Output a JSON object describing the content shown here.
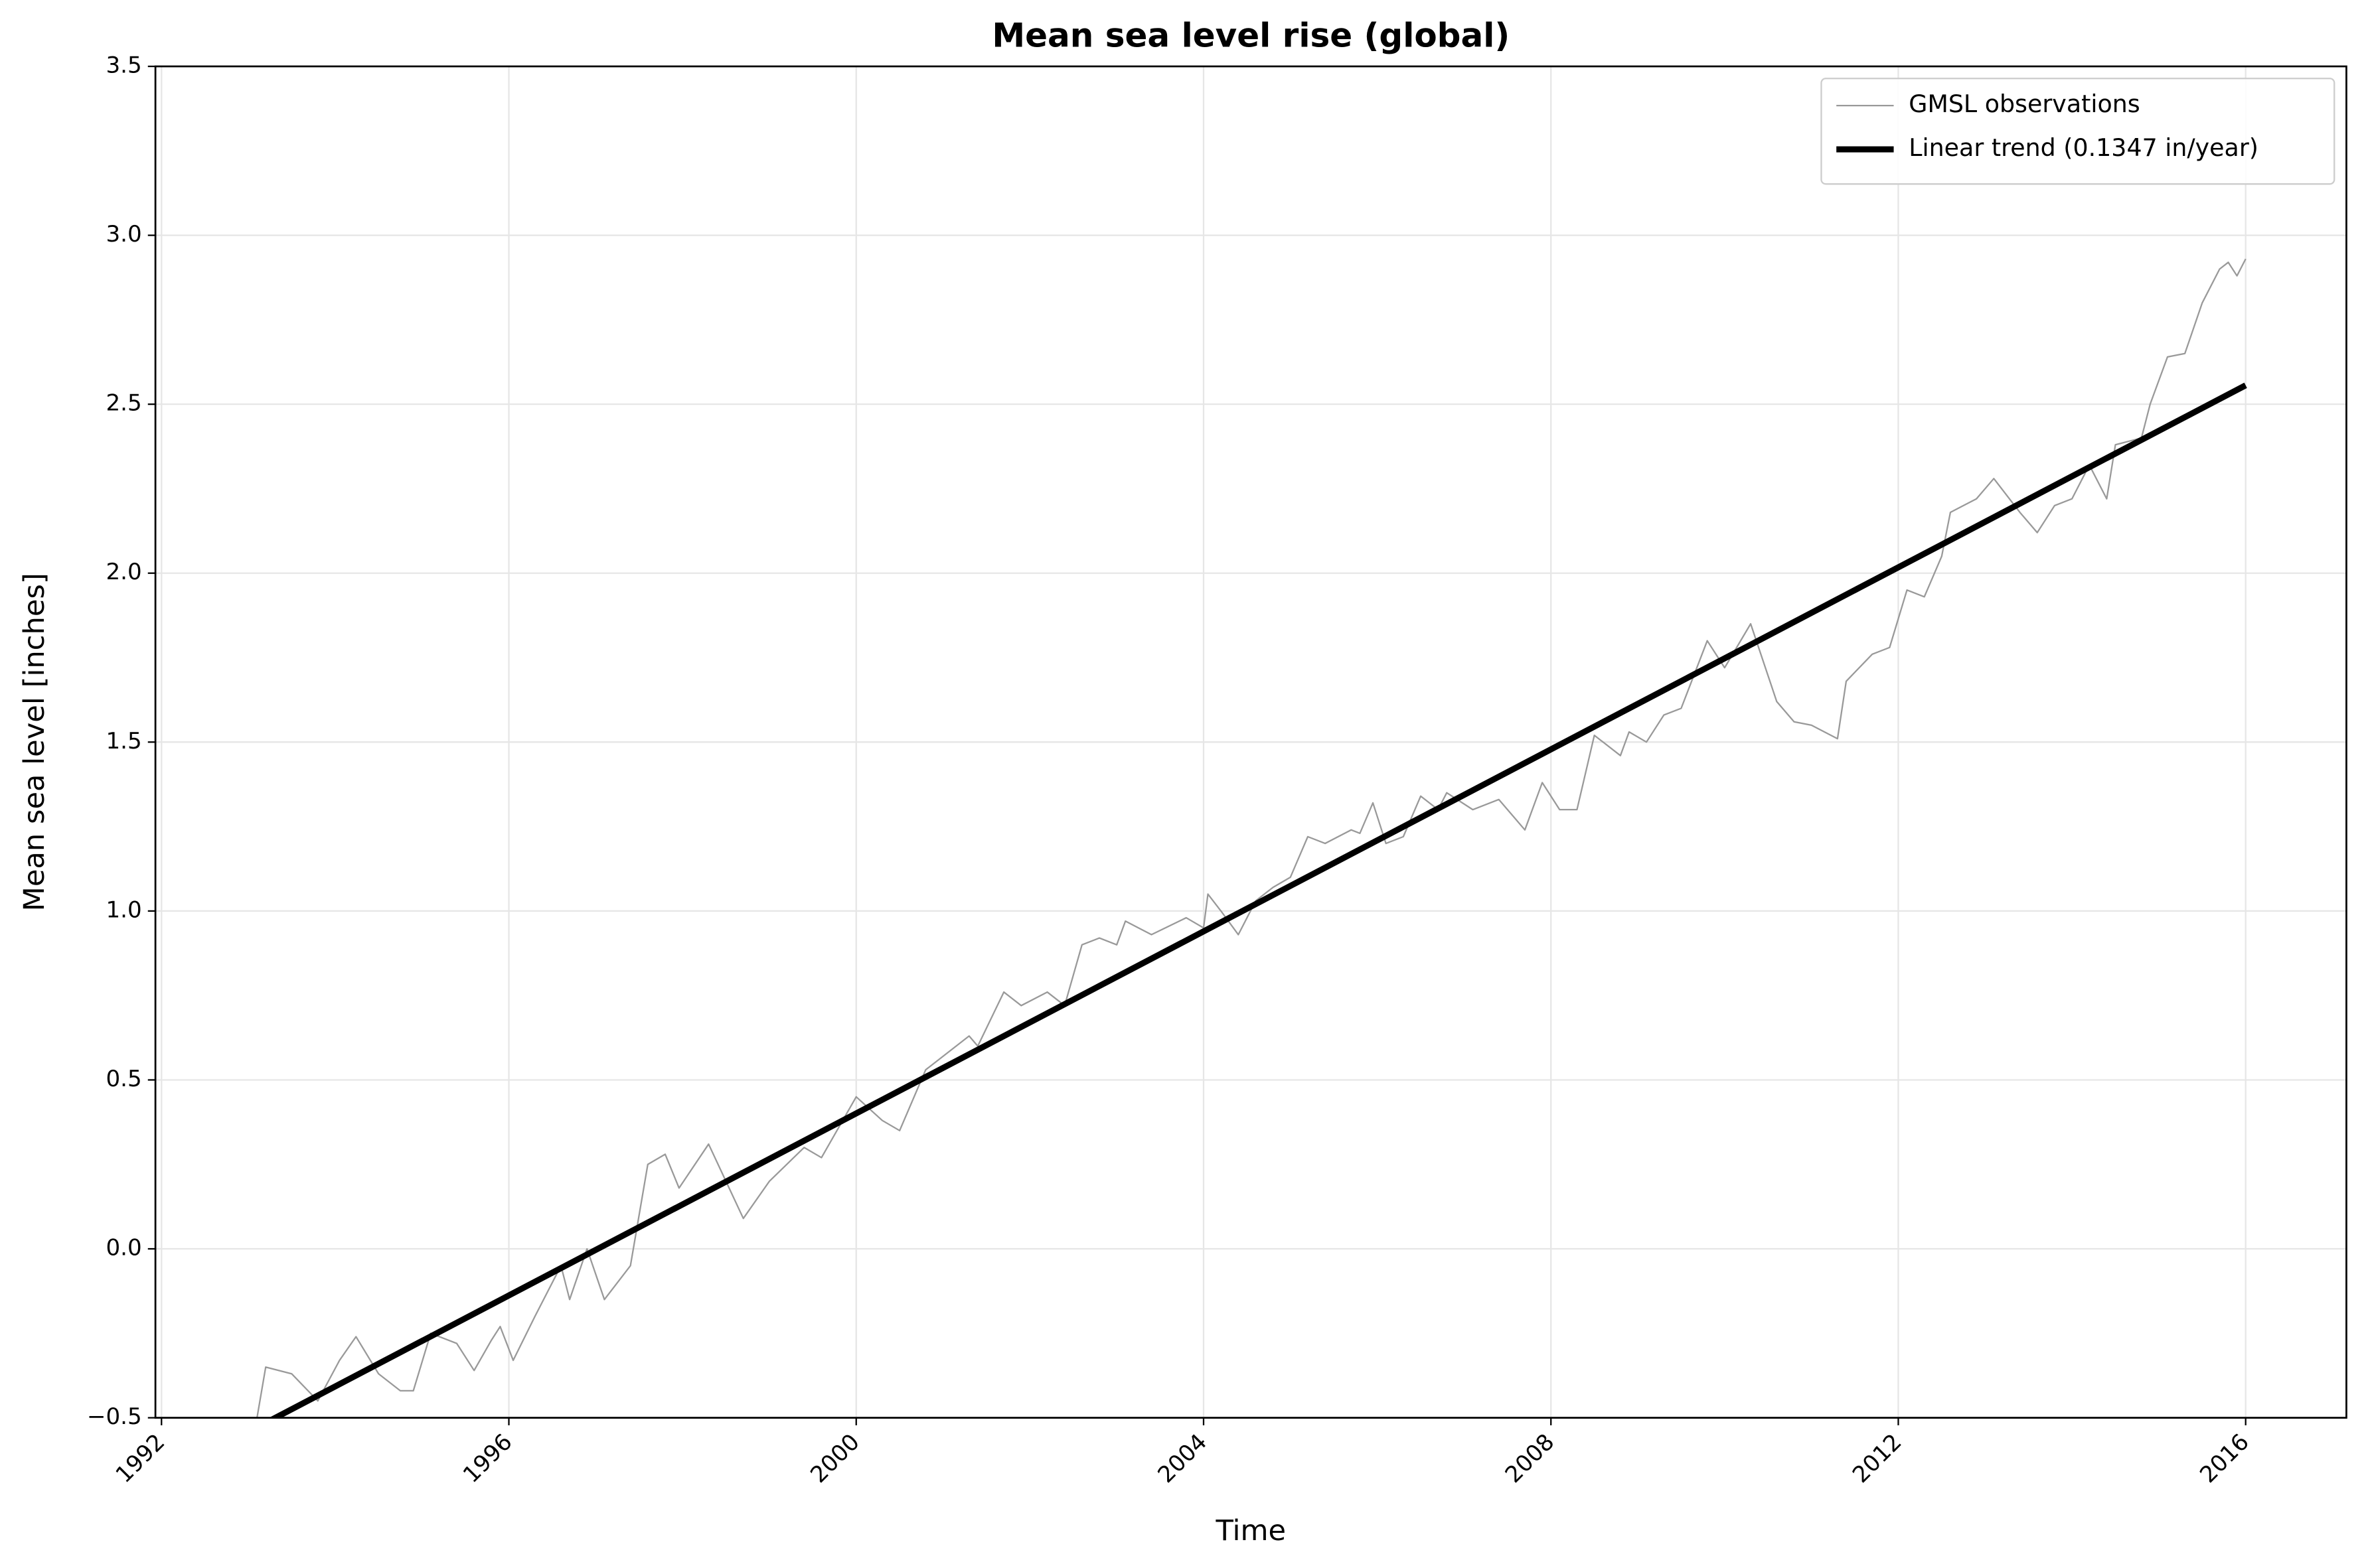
{
  "chart_data": {
    "type": "line",
    "title": "Mean sea level rise (global)",
    "x_label": "Time",
    "y_label": "Mean sea level [inches]",
    "xlim": [
      1991.93,
      2017.16
    ],
    "ylim": [
      -0.5,
      3.5
    ],
    "xticks": [
      1992,
      1996,
      2000,
      2004,
      2008,
      2012,
      2016
    ],
    "yticks": [
      {
        "value": -0.5,
        "label": "−0.5"
      },
      {
        "value": 0,
        "label": "0.0"
      },
      0.5,
      {
        "value": 1,
        "label": "1.0"
      },
      1.5,
      {
        "value": 2,
        "label": "2.0"
      },
      2.5,
      {
        "value": 3,
        "label": "3.0"
      },
      3.5
    ],
    "grid": true,
    "legend": "upper right",
    "series": [
      {
        "name": "GMSL observations",
        "color": "#999999",
        "width": 1,
        "x": [
          1993.0,
          1993.1,
          1993.2,
          1993.5,
          1993.8,
          1994.05,
          1994.24,
          1994.5,
          1994.75,
          1994.9,
          1995.1,
          1995.4,
          1995.6,
          1995.8,
          1995.9,
          1996.05,
          1996.3,
          1996.6,
          1996.7,
          1996.9,
          1997.1,
          1997.4,
          1997.6,
          1997.8,
          1997.96,
          1998.3,
          1998.7,
          1999.0,
          1999.4,
          1999.6,
          2000.0,
          2000.3,
          2000.5,
          2000.8,
          2001.3,
          2001.4,
          2001.7,
          2001.9,
          2002.2,
          2002.4,
          2002.6,
          2002.8,
          2003.0,
          2003.1,
          2003.4,
          2003.8,
          2004.0,
          2004.05,
          2004.2,
          2004.4,
          2004.6,
          2004.8,
          2005.0,
          2005.2,
          2005.4,
          2005.7,
          2005.8,
          2005.95,
          2006.1,
          2006.3,
          2006.5,
          2006.7,
          2006.8,
          2007.1,
          2007.4,
          2007.7,
          2007.9,
          2008.1,
          2008.3,
          2008.5,
          2008.8,
          2008.9,
          2009.1,
          2009.3,
          2009.5,
          2009.8,
          2010.0,
          2010.3,
          2010.6,
          2010.8,
          2011.0,
          2011.3,
          2011.4,
          2011.7,
          2011.9,
          2012.1,
          2012.3,
          2012.5,
          2012.6,
          2012.9,
          2013.1,
          2013.4,
          2013.6,
          2013.8,
          2014.0,
          2014.2,
          2014.4,
          2014.5,
          2014.8,
          2014.9,
          2015.1,
          2015.3,
          2015.5,
          2015.7,
          2015.8,
          2015.9,
          2016.0
        ],
        "values": [
          -0.55,
          -0.5,
          -0.35,
          -0.37,
          -0.45,
          -0.33,
          -0.26,
          -0.37,
          -0.42,
          -0.42,
          -0.25,
          -0.28,
          -0.36,
          -0.27,
          -0.23,
          -0.33,
          -0.2,
          -0.05,
          -0.15,
          0.0,
          -0.15,
          -0.05,
          0.25,
          0.28,
          0.18,
          0.31,
          0.09,
          0.2,
          0.3,
          0.27,
          0.45,
          0.38,
          0.35,
          0.53,
          0.63,
          0.6,
          0.76,
          0.72,
          0.76,
          0.72,
          0.9,
          0.92,
          0.9,
          0.97,
          0.93,
          0.98,
          0.95,
          1.05,
          1.0,
          0.93,
          1.03,
          1.07,
          1.1,
          1.22,
          1.2,
          1.24,
          1.23,
          1.32,
          1.2,
          1.22,
          1.34,
          1.3,
          1.35,
          1.3,
          1.33,
          1.24,
          1.38,
          1.3,
          1.3,
          1.52,
          1.46,
          1.53,
          1.5,
          1.58,
          1.6,
          1.8,
          1.72,
          1.85,
          1.62,
          1.56,
          1.55,
          1.51,
          1.68,
          1.76,
          1.78,
          1.95,
          1.93,
          2.05,
          2.18,
          2.22,
          2.28,
          2.18,
          2.12,
          2.2,
          2.22,
          2.32,
          2.22,
          2.38,
          2.4,
          2.5,
          2.64,
          2.65,
          2.8,
          2.9,
          2.92,
          2.88,
          2.93
        ]
      },
      {
        "name": "Linear trend (0.1347 in/year)",
        "color": "#000000",
        "width": 4,
        "x": [
          1993.0,
          2016.0
        ],
        "values": [
          -0.542,
          2.556
        ]
      }
    ]
  }
}
